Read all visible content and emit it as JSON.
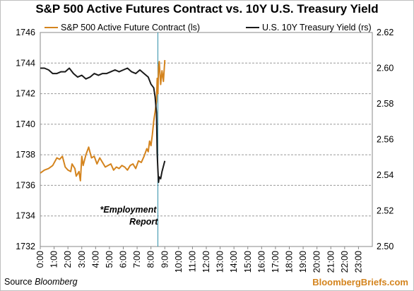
{
  "chart_data": {
    "type": "line",
    "title": "S&P 500 Active Futures Contract vs. 10Y U.S. Treasury Yield",
    "x_tick_labels": [
      "0:00",
      "1:00",
      "2:00",
      "3:00",
      "4:00",
      "5:00",
      "6:00",
      "7:00",
      "8:00",
      "9:00",
      "10:00",
      "11:00",
      "12:00",
      "13:00",
      "14:00",
      "15:00",
      "16:00",
      "17:00",
      "18:00",
      "19:00",
      "20:00",
      "21:00",
      "22:00",
      "23:00"
    ],
    "xlim": [
      0,
      24
    ],
    "left_axis": {
      "ylim": [
        1732,
        1746
      ],
      "ticks": [
        "1732",
        "1734",
        "1736",
        "1738",
        "1740",
        "1742",
        "1744",
        "1746"
      ]
    },
    "right_axis": {
      "ylim": [
        2.5,
        2.62
      ],
      "ticks": [
        "2.50",
        "2.52",
        "2.54",
        "2.56",
        "2.58",
        "2.60",
        "2.62"
      ]
    },
    "gridlines": "horizontal dashed",
    "legend_position": "top",
    "annotation": {
      "line1": "*Employment",
      "line2": "Report",
      "x": 8.5
    },
    "source_prefix": "Source ",
    "source_name": "Bloomberg",
    "brand": "BloombergBriefs.com",
    "series": [
      {
        "name": "S&P 500 Active Future Contract (ls)",
        "axis": "left",
        "color": "#D4841E",
        "x": [
          0.0,
          0.3,
          0.6,
          0.9,
          1.2,
          1.4,
          1.6,
          1.8,
          2.0,
          2.2,
          2.3,
          2.5,
          2.6,
          2.8,
          2.9,
          3.0,
          3.1,
          3.3,
          3.5,
          3.7,
          3.9,
          4.1,
          4.3,
          4.5,
          4.7,
          4.9,
          5.1,
          5.3,
          5.5,
          5.7,
          5.9,
          6.1,
          6.3,
          6.5,
          6.7,
          6.9,
          7.1,
          7.3,
          7.5,
          7.7,
          7.8,
          7.9,
          8.0,
          8.1,
          8.2,
          8.3,
          8.4,
          8.45,
          8.5,
          8.55,
          8.6,
          8.7,
          8.8,
          8.9,
          9.0
        ],
        "values": [
          1736.8,
          1737.0,
          1737.1,
          1737.3,
          1737.8,
          1737.7,
          1737.9,
          1737.2,
          1737.0,
          1736.9,
          1737.4,
          1737.1,
          1736.6,
          1736.9,
          1736.3,
          1737.9,
          1737.3,
          1738.0,
          1738.5,
          1737.8,
          1737.9,
          1737.4,
          1737.8,
          1737.5,
          1737.2,
          1737.3,
          1737.4,
          1737.0,
          1737.2,
          1737.1,
          1737.3,
          1737.2,
          1737.0,
          1737.3,
          1737.4,
          1737.1,
          1737.6,
          1737.5,
          1737.9,
          1738.4,
          1738.2,
          1738.9,
          1738.6,
          1739.3,
          1740.2,
          1740.8,
          1741.5,
          1743.0,
          1742.0,
          1743.7,
          1744.1,
          1742.6,
          1743.5,
          1742.8,
          1744.2
        ]
      },
      {
        "name": "U.S. 10Y Treasury Yield (rs)",
        "axis": "right",
        "color": "#1a1a1a",
        "x": [
          0.0,
          0.3,
          0.6,
          0.9,
          1.2,
          1.5,
          1.8,
          2.1,
          2.4,
          2.7,
          3.0,
          3.3,
          3.6,
          3.9,
          4.2,
          4.5,
          4.8,
          5.1,
          5.4,
          5.7,
          6.0,
          6.3,
          6.6,
          6.9,
          7.2,
          7.5,
          7.8,
          8.0,
          8.2,
          8.3,
          8.4,
          8.45,
          8.5,
          8.55,
          8.6,
          8.7,
          8.8,
          8.9,
          9.0
        ],
        "values": [
          2.6,
          2.6,
          2.599,
          2.597,
          2.597,
          2.598,
          2.598,
          2.6,
          2.597,
          2.595,
          2.596,
          2.594,
          2.595,
          2.597,
          2.596,
          2.597,
          2.597,
          2.598,
          2.599,
          2.598,
          2.599,
          2.6,
          2.598,
          2.597,
          2.599,
          2.597,
          2.595,
          2.591,
          2.589,
          2.584,
          2.575,
          2.552,
          2.543,
          2.536,
          2.539,
          2.538,
          2.542,
          2.545,
          2.548
        ]
      }
    ]
  }
}
